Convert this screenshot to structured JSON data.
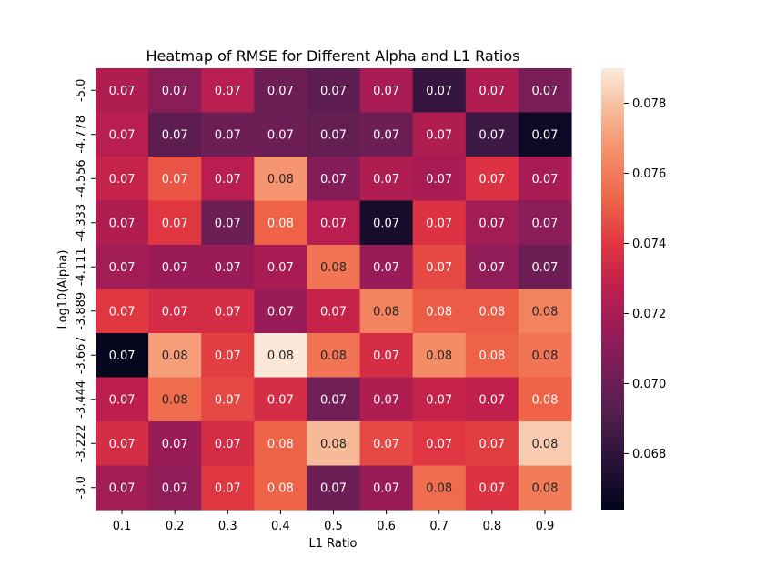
{
  "chart_data": {
    "type": "heatmap",
    "title": "Heatmap of RMSE for Different Alpha and L1 Ratios",
    "xlabel": "L1 Ratio",
    "ylabel": "Log10(Alpha)",
    "x_categories": [
      "0.1",
      "0.2",
      "0.3",
      "0.4",
      "0.5",
      "0.6",
      "0.7",
      "0.8",
      "0.9"
    ],
    "y_categories": [
      "-5.0",
      "-4.778",
      "-4.556",
      "-4.333",
      "-4.111",
      "-3.889",
      "-3.667",
      "-3.444",
      "-3.222",
      "-3.0"
    ],
    "values": [
      [
        0.0722,
        0.071,
        0.0725,
        0.07,
        0.0695,
        0.072,
        0.0682,
        0.0722,
        0.0705
      ],
      [
        0.0725,
        0.0695,
        0.07,
        0.07,
        0.0697,
        0.07,
        0.0722,
        0.0685,
        0.0668
      ],
      [
        0.073,
        0.0748,
        0.0725,
        0.0768,
        0.0708,
        0.0722,
        0.072,
        0.0738,
        0.072
      ],
      [
        0.0722,
        0.074,
        0.07,
        0.0752,
        0.0725,
        0.0672,
        0.0738,
        0.0718,
        0.071
      ],
      [
        0.0718,
        0.0715,
        0.0715,
        0.072,
        0.0758,
        0.0715,
        0.0745,
        0.0712,
        0.07
      ],
      [
        0.074,
        0.0735,
        0.0735,
        0.0715,
        0.073,
        0.0762,
        0.075,
        0.075,
        0.0762
      ],
      [
        0.0665,
        0.077,
        0.0742,
        0.0789,
        0.0758,
        0.0735,
        0.0765,
        0.0752,
        0.0758
      ],
      [
        0.0727,
        0.0755,
        0.0745,
        0.0735,
        0.0702,
        0.0722,
        0.073,
        0.0728,
        0.0752
      ],
      [
        0.0735,
        0.0715,
        0.0735,
        0.0752,
        0.0778,
        0.0745,
        0.074,
        0.0742,
        0.0782
      ],
      [
        0.0718,
        0.0712,
        0.074,
        0.0752,
        0.07,
        0.0715,
        0.0755,
        0.0738,
        0.076
      ]
    ],
    "annotations": [
      [
        "0.07",
        "0.07",
        "0.07",
        "0.07",
        "0.07",
        "0.07",
        "0.07",
        "0.07",
        "0.07"
      ],
      [
        "0.07",
        "0.07",
        "0.07",
        "0.07",
        "0.07",
        "0.07",
        "0.07",
        "0.07",
        "0.07"
      ],
      [
        "0.07",
        "0.07",
        "0.07",
        "0.08",
        "0.07",
        "0.07",
        "0.07",
        "0.07",
        "0.07"
      ],
      [
        "0.07",
        "0.07",
        "0.07",
        "0.08",
        "0.07",
        "0.07",
        "0.07",
        "0.07",
        "0.07"
      ],
      [
        "0.07",
        "0.07",
        "0.07",
        "0.07",
        "0.08",
        "0.07",
        "0.07",
        "0.07",
        "0.07"
      ],
      [
        "0.07",
        "0.07",
        "0.07",
        "0.07",
        "0.07",
        "0.08",
        "0.08",
        "0.08",
        "0.08"
      ],
      [
        "0.07",
        "0.08",
        "0.07",
        "0.08",
        "0.08",
        "0.07",
        "0.08",
        "0.08",
        "0.08"
      ],
      [
        "0.07",
        "0.08",
        "0.07",
        "0.07",
        "0.07",
        "0.07",
        "0.07",
        "0.07",
        "0.08"
      ],
      [
        "0.07",
        "0.07",
        "0.07",
        "0.08",
        "0.08",
        "0.07",
        "0.07",
        "0.07",
        "0.08"
      ],
      [
        "0.07",
        "0.07",
        "0.07",
        "0.08",
        "0.07",
        "0.07",
        "0.08",
        "0.07",
        "0.08"
      ]
    ],
    "colorbar": {
      "min": 0.0664,
      "max": 0.079,
      "ticks": [
        "0.068",
        "0.070",
        "0.072",
        "0.074",
        "0.076",
        "0.078"
      ],
      "colormap": "rocket"
    }
  }
}
